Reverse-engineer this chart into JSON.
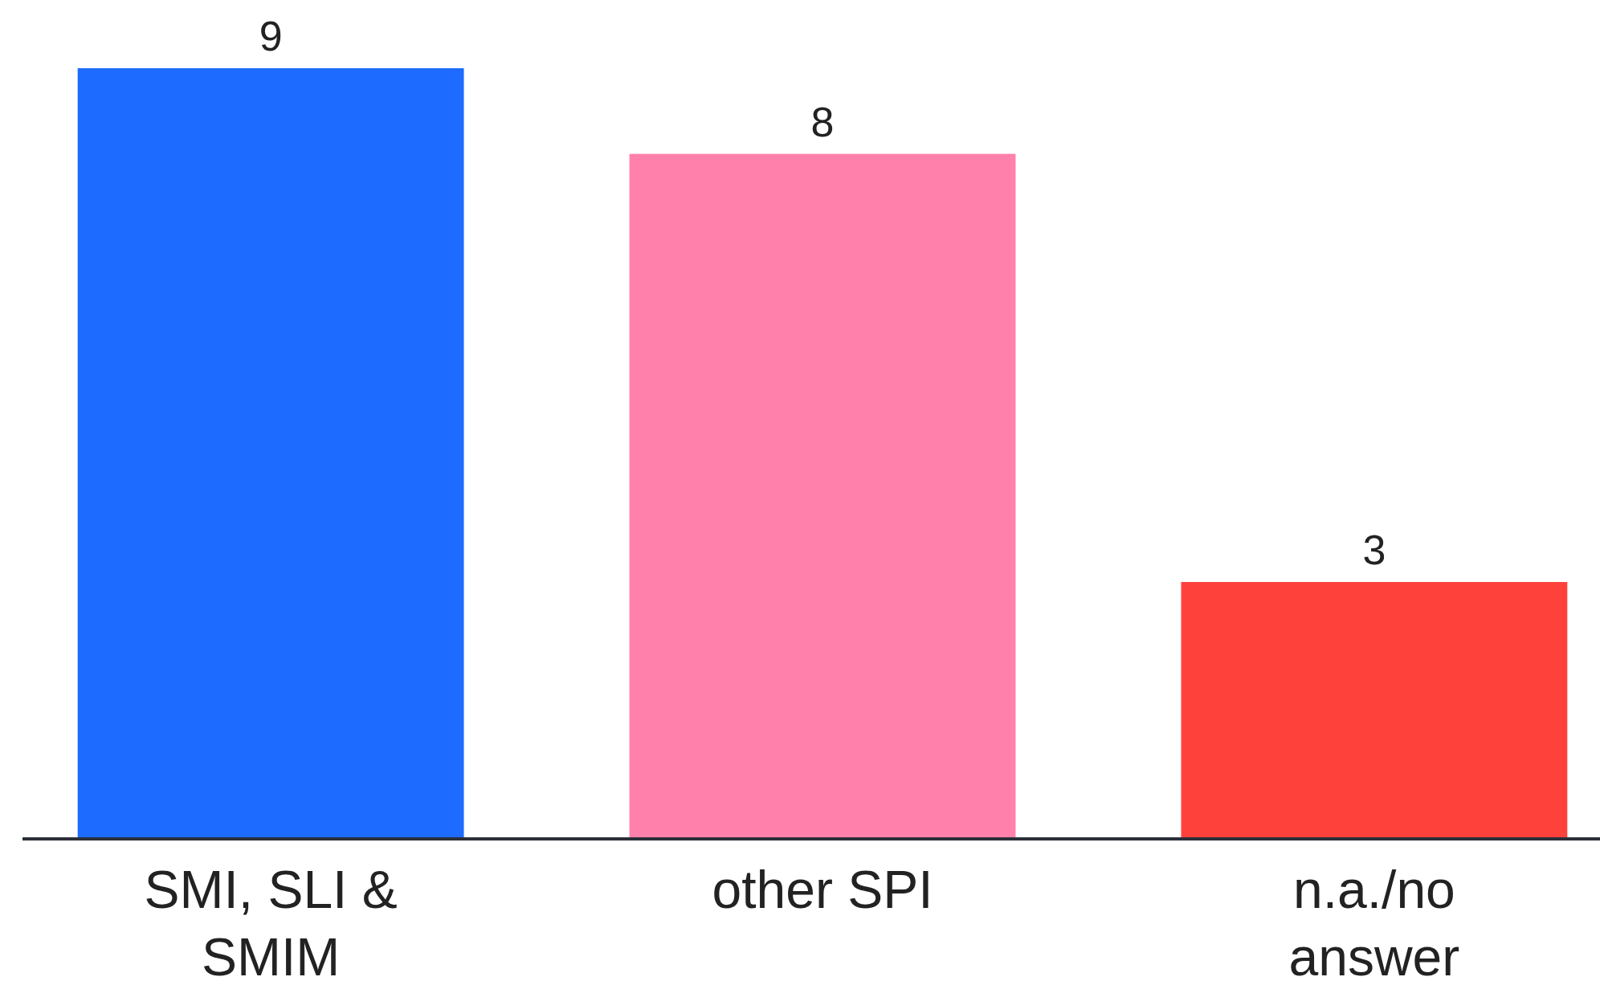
{
  "chart_data": {
    "type": "bar",
    "categories": [
      "SMI, SLI & SMIM",
      "other SPI",
      "n.a./no answer"
    ],
    "values": [
      9,
      8,
      3
    ],
    "colors": [
      "#1e6bff",
      "#ff80aa",
      "#ff413c"
    ],
    "data_labels": true
  }
}
